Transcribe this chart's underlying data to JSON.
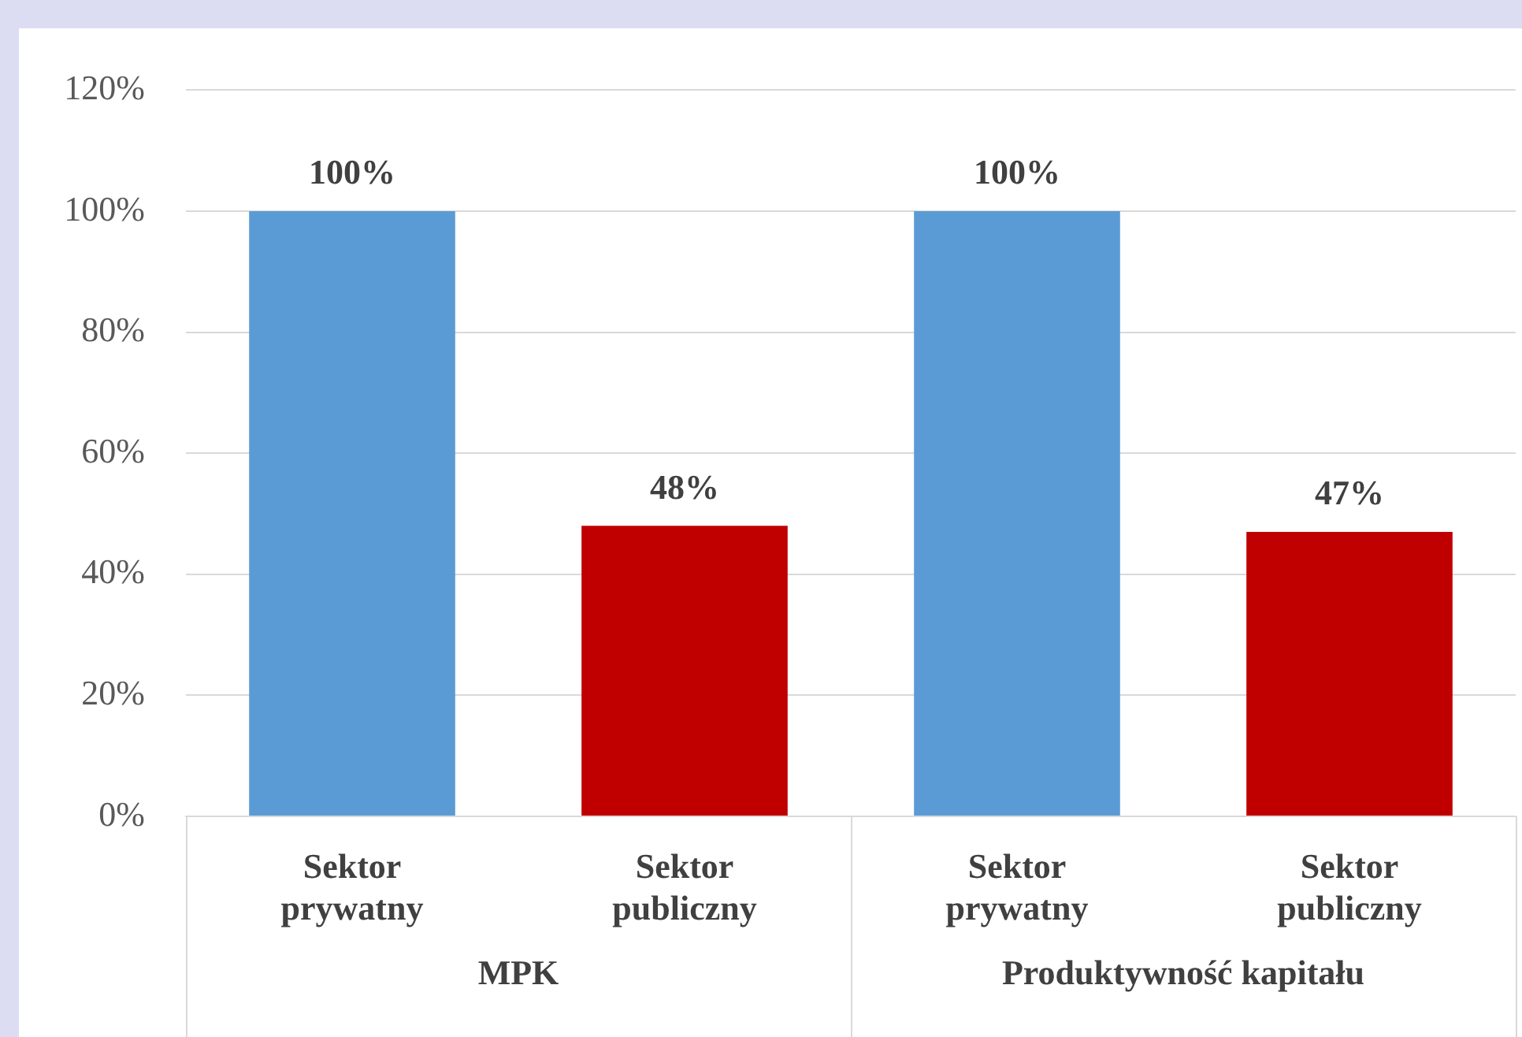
{
  "chart_data": {
    "type": "bar",
    "categories": [
      "Sektor prywatny",
      "Sektor publiczny",
      "Sektor prywatny",
      "Sektor publiczny"
    ],
    "values": [
      100,
      48,
      100,
      47
    ],
    "colors": [
      "#5b9bd5",
      "#c00000",
      "#5b9bd5",
      "#c00000"
    ],
    "value_labels": [
      "100%",
      "48%",
      "100%",
      "47%"
    ],
    "ylim": [
      0,
      120
    ],
    "yticks": [
      {
        "value": 0,
        "label": "0%"
      },
      {
        "value": 20,
        "label": "20%"
      },
      {
        "value": 40,
        "label": "40%"
      },
      {
        "value": 60,
        "label": "60%"
      },
      {
        "value": 80,
        "label": "80%"
      },
      {
        "value": 100,
        "label": "100%"
      },
      {
        "value": 120,
        "label": "120%"
      }
    ],
    "grid": "y",
    "annotations": [
      "MPK",
      "Produktywność kapitału"
    ]
  }
}
